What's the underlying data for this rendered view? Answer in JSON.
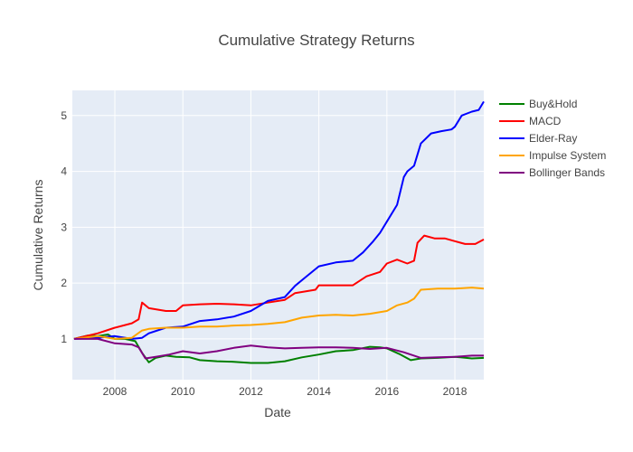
{
  "chart_data": {
    "type": "line",
    "title": "Cumulative Strategy Returns",
    "xlabel": "Date",
    "ylabel": "Cumulative Returns",
    "xlim": [
      2006.75,
      2018.85
    ],
    "ylim": [
      0.27,
      5.45
    ],
    "x_ticks": [
      2008,
      2010,
      2012,
      2014,
      2016,
      2018
    ],
    "y_ticks": [
      1,
      2,
      3,
      4,
      5
    ],
    "grid": true,
    "legend_position": "right",
    "background": "#e5ecf6",
    "series": [
      {
        "name": "Buy&Hold",
        "color": "#008000",
        "x": [
          2006.8,
          2007.2,
          2007.5,
          2007.8,
          2008.0,
          2008.3,
          2008.6,
          2008.8,
          2009.0,
          2009.2,
          2009.5,
          2009.8,
          2010.2,
          2010.5,
          2011.0,
          2011.5,
          2012.0,
          2012.5,
          2013.0,
          2013.5,
          2014.0,
          2014.5,
          2015.0,
          2015.5,
          2015.8,
          2016.0,
          2016.4,
          2016.7,
          2017.0,
          2017.5,
          2018.0,
          2018.5,
          2018.85
        ],
        "values": [
          1.0,
          1.06,
          1.05,
          1.08,
          1.0,
          1.0,
          0.96,
          0.75,
          0.58,
          0.66,
          0.7,
          0.68,
          0.67,
          0.62,
          0.6,
          0.59,
          0.57,
          0.57,
          0.6,
          0.67,
          0.72,
          0.78,
          0.8,
          0.86,
          0.85,
          0.83,
          0.72,
          0.62,
          0.65,
          0.66,
          0.68,
          0.65,
          0.66
        ]
      },
      {
        "name": "MACD",
        "color": "#ff0000",
        "x": [
          2006.8,
          2007.5,
          2008.0,
          2008.5,
          2008.7,
          2008.8,
          2009.0,
          2009.5,
          2009.8,
          2010.0,
          2010.5,
          2011.0,
          2011.5,
          2012.0,
          2012.5,
          2013.0,
          2013.3,
          2013.6,
          2013.9,
          2014.0,
          2014.5,
          2015.0,
          2015.4,
          2015.8,
          2016.0,
          2016.3,
          2016.6,
          2016.8,
          2016.9,
          2017.1,
          2017.4,
          2017.7,
          2018.0,
          2018.3,
          2018.6,
          2018.85
        ],
        "values": [
          1.0,
          1.1,
          1.2,
          1.28,
          1.35,
          1.65,
          1.55,
          1.5,
          1.5,
          1.6,
          1.62,
          1.63,
          1.62,
          1.6,
          1.65,
          1.7,
          1.82,
          1.85,
          1.88,
          1.96,
          1.96,
          1.96,
          2.12,
          2.2,
          2.35,
          2.42,
          2.35,
          2.4,
          2.72,
          2.85,
          2.8,
          2.8,
          2.75,
          2.7,
          2.7,
          2.78
        ]
      },
      {
        "name": "Elder-Ray",
        "color": "#0000ff",
        "x": [
          2006.8,
          2007.5,
          2008.0,
          2008.5,
          2008.8,
          2009.0,
          2009.5,
          2010.0,
          2010.5,
          2011.0,
          2011.5,
          2012.0,
          2012.5,
          2013.0,
          2013.3,
          2013.6,
          2014.0,
          2014.5,
          2015.0,
          2015.3,
          2015.6,
          2015.8,
          2016.0,
          2016.3,
          2016.5,
          2016.6,
          2016.8,
          2017.0,
          2017.3,
          2017.6,
          2017.9,
          2018.0,
          2018.2,
          2018.5,
          2018.7,
          2018.85
        ],
        "values": [
          1.0,
          1.02,
          1.05,
          1.0,
          1.02,
          1.1,
          1.2,
          1.22,
          1.32,
          1.35,
          1.4,
          1.5,
          1.68,
          1.75,
          1.95,
          2.1,
          2.3,
          2.37,
          2.4,
          2.55,
          2.75,
          2.9,
          3.1,
          3.4,
          3.9,
          4.0,
          4.1,
          4.5,
          4.68,
          4.72,
          4.75,
          4.8,
          5.0,
          5.07,
          5.1,
          5.25
        ]
      },
      {
        "name": "Impulse System",
        "color": "#ffa500",
        "x": [
          2006.8,
          2007.5,
          2008.0,
          2008.5,
          2008.8,
          2009.0,
          2009.5,
          2010.0,
          2010.5,
          2011.0,
          2011.5,
          2012.0,
          2012.5,
          2013.0,
          2013.5,
          2014.0,
          2014.5,
          2015.0,
          2015.5,
          2016.0,
          2016.3,
          2016.6,
          2016.8,
          2017.0,
          2017.5,
          2018.0,
          2018.5,
          2018.85
        ],
        "values": [
          1.0,
          1.05,
          1.0,
          1.02,
          1.15,
          1.18,
          1.2,
          1.2,
          1.22,
          1.22,
          1.24,
          1.25,
          1.27,
          1.3,
          1.38,
          1.42,
          1.43,
          1.42,
          1.45,
          1.5,
          1.6,
          1.65,
          1.72,
          1.88,
          1.9,
          1.9,
          1.92,
          1.9
        ]
      },
      {
        "name": "Bollinger Bands",
        "color": "#800080",
        "x": [
          2006.8,
          2007.5,
          2008.0,
          2008.5,
          2008.7,
          2008.9,
          2009.2,
          2009.6,
          2010.0,
          2010.5,
          2011.0,
          2011.5,
          2012.0,
          2012.5,
          2013.0,
          2013.5,
          2014.0,
          2014.5,
          2015.0,
          2015.5,
          2016.0,
          2016.5,
          2017.0,
          2017.5,
          2018.0,
          2018.5,
          2018.85
        ],
        "values": [
          1.0,
          1.0,
          0.92,
          0.9,
          0.85,
          0.65,
          0.68,
          0.72,
          0.78,
          0.74,
          0.78,
          0.84,
          0.88,
          0.85,
          0.83,
          0.84,
          0.85,
          0.85,
          0.84,
          0.82,
          0.84,
          0.76,
          0.66,
          0.67,
          0.68,
          0.7,
          0.7
        ]
      }
    ]
  }
}
